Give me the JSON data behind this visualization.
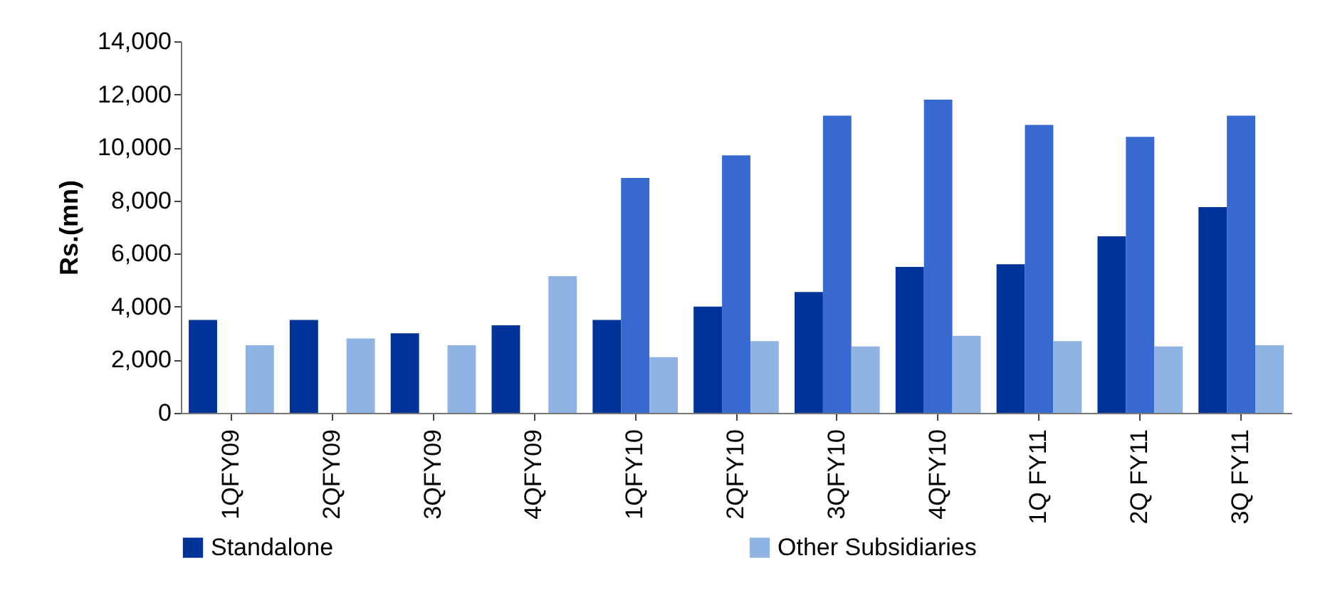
{
  "chart_data": {
    "type": "bar",
    "ylabel": "Rs.(mn)",
    "categories": [
      "1QFY09",
      "2QFY09",
      "3QFY09",
      "4QFY09",
      "1QFY10",
      "2QFY10",
      "3QFY10",
      "4QFY10",
      "1Q FY11",
      "2Q FY11",
      "3Q FY11"
    ],
    "series": [
      {
        "name": "Standalone",
        "color": "#003399",
        "values": [
          3500,
          3500,
          3000,
          3300,
          3500,
          4000,
          4550,
          5500,
          5600,
          6650,
          7750
        ]
      },
      {
        "color": "#3769d0",
        "values": [
          null,
          null,
          null,
          null,
          8850,
          9700,
          11200,
          11800,
          10850,
          10400,
          11200
        ]
      },
      {
        "name": "Other Subsidiaries",
        "color": "#8fb3e2",
        "values": [
          2550,
          2800,
          2550,
          5150,
          2100,
          2700,
          2500,
          2900,
          2700,
          2500,
          2550
        ]
      }
    ],
    "ylim": [
      0,
      14000
    ],
    "yticks": [
      0,
      {
        "value": 2000,
        "label": "2,000"
      },
      {
        "value": 4000,
        "label": "4,000"
      },
      {
        "value": 6000,
        "label": "6,000"
      },
      {
        "value": 8000,
        "label": "8,000"
      },
      {
        "value": 10000,
        "label": "10,000"
      },
      {
        "value": 12000,
        "label": "12,000"
      },
      {
        "value": 14000,
        "label": "14,000"
      }
    ],
    "grid": false,
    "legend": "bottom"
  }
}
